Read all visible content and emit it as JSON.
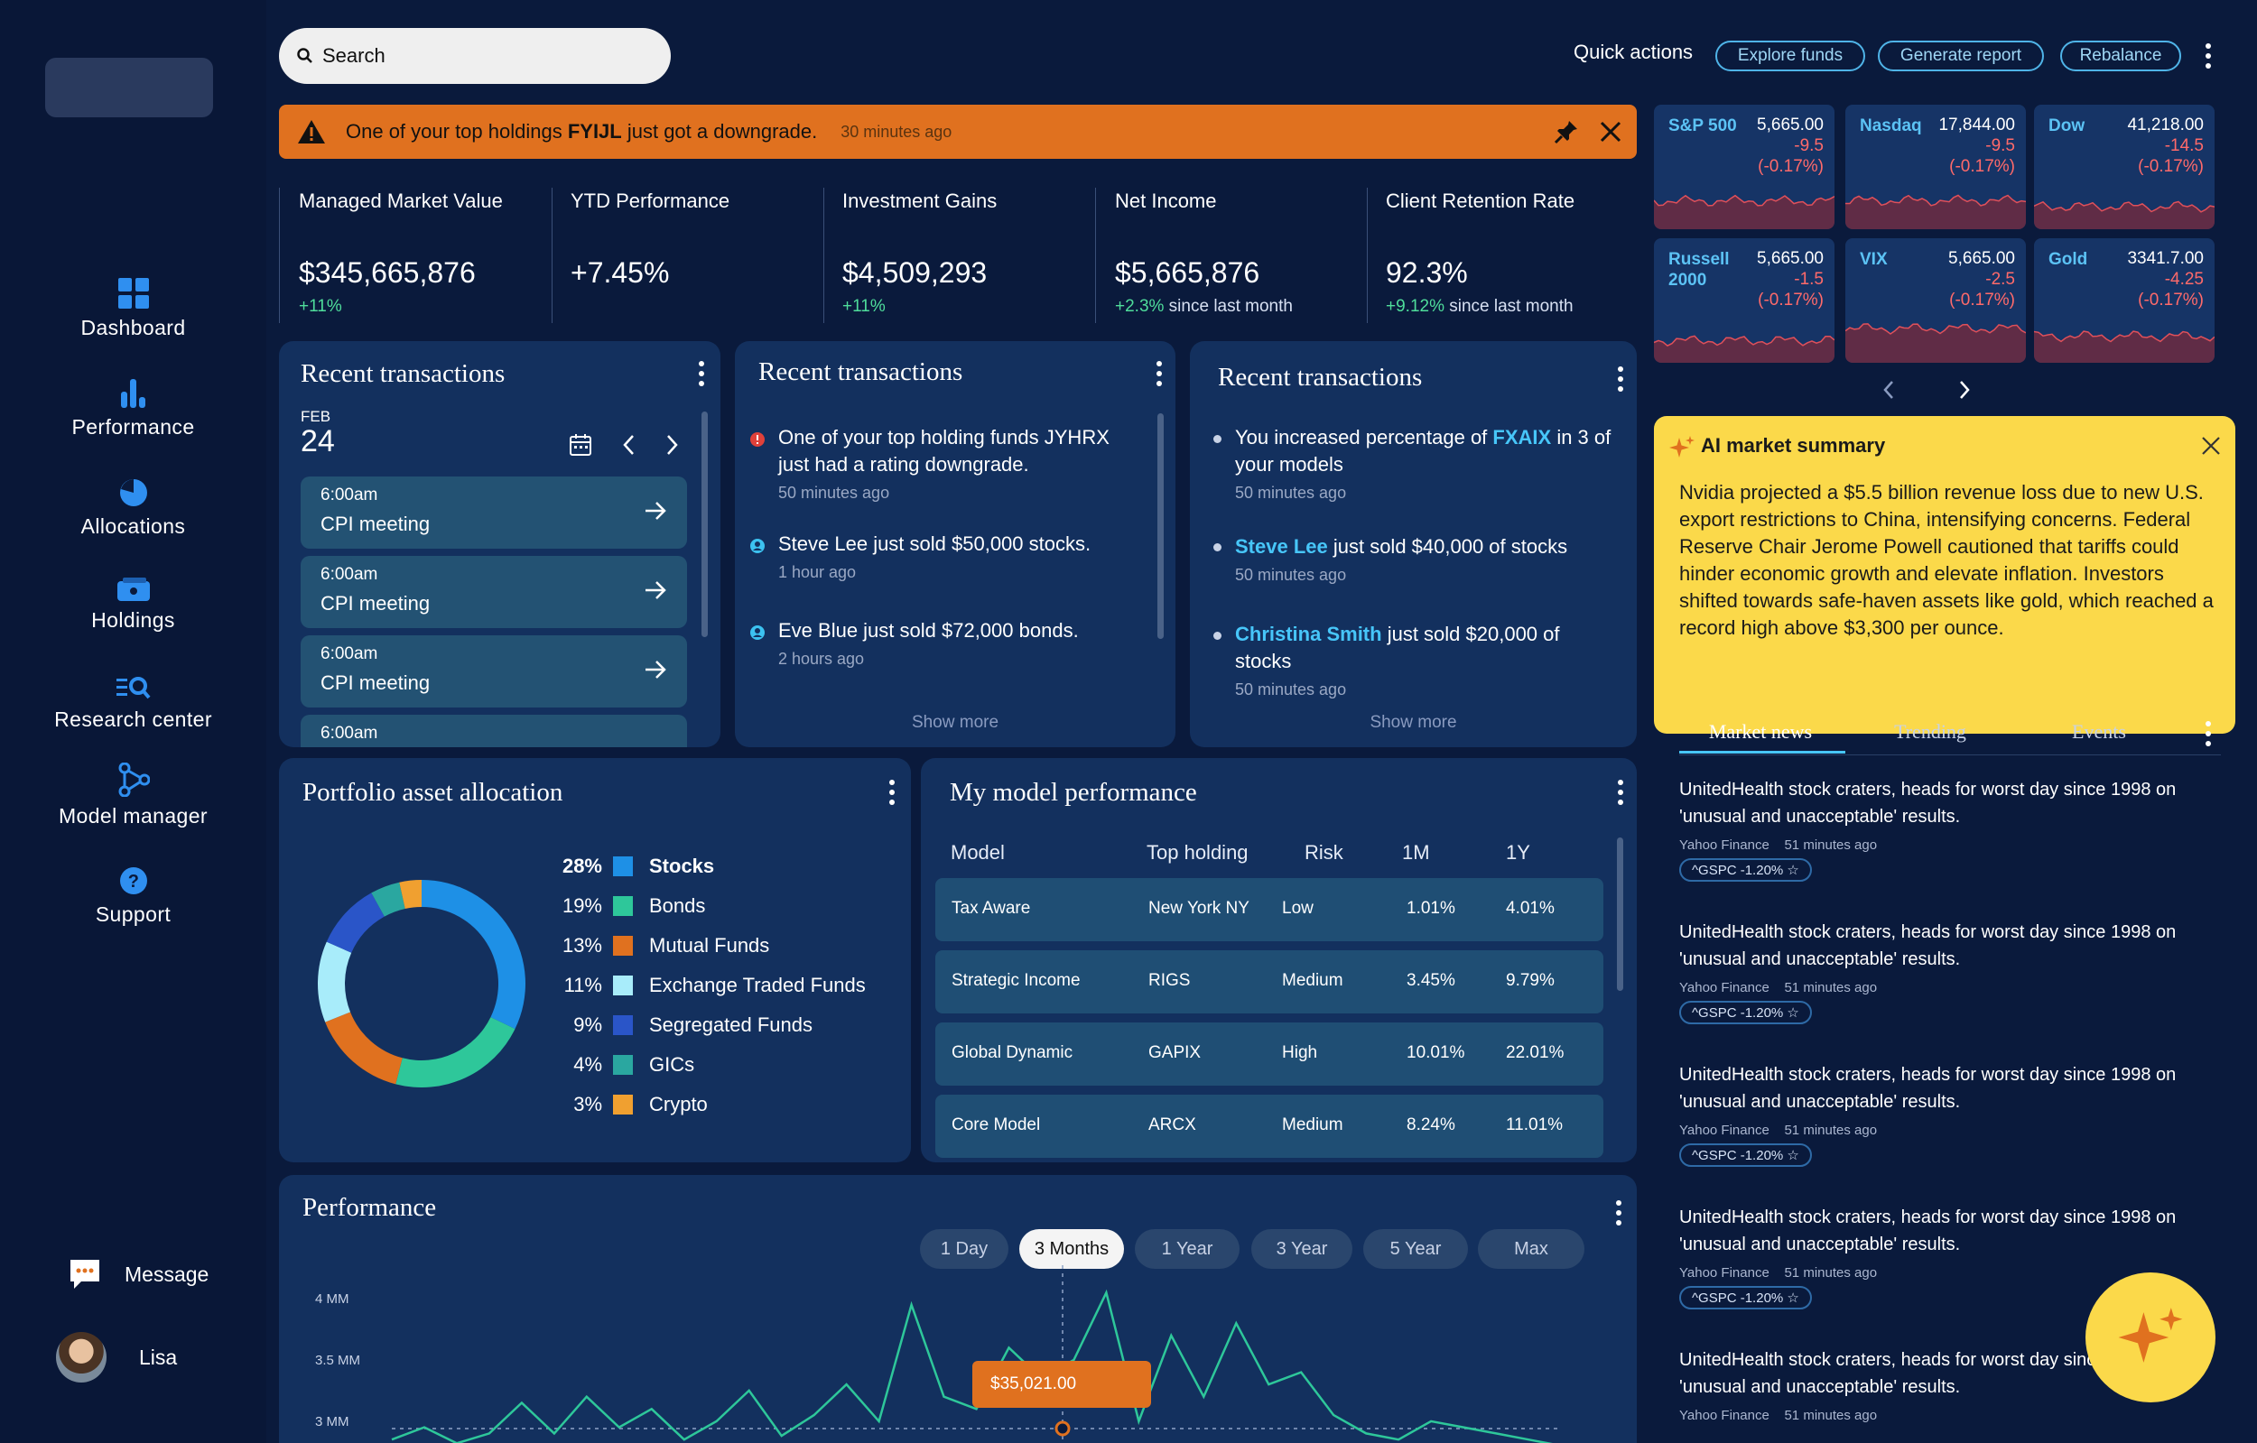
{
  "sidebar": {
    "items": [
      {
        "label": "Dashboard",
        "icon": "dashboard-icon"
      },
      {
        "label": "Performance",
        "icon": "bar-chart-icon"
      },
      {
        "label": "Allocations",
        "icon": "pie-chart-icon"
      },
      {
        "label": "Holdings",
        "icon": "wallet-icon"
      },
      {
        "label": "Research center",
        "icon": "research-icon"
      },
      {
        "label": "Model manager",
        "icon": "model-icon"
      },
      {
        "label": "Support",
        "icon": "help-icon"
      }
    ],
    "message_label": "Message",
    "user_name": "Lisa"
  },
  "search": {
    "placeholder": "Search"
  },
  "quick_actions": {
    "label": "Quick actions",
    "buttons": [
      "Explore funds",
      "Generate report",
      "Rebalance"
    ]
  },
  "alert": {
    "prefix": "One of your top holdings ",
    "ticker": "FYIJL",
    "suffix": " just got a downgrade.",
    "time": "30 minutes ago",
    "color": "#e0711f"
  },
  "kpis": [
    {
      "label": "Managed Market Value",
      "value": "$345,665,876",
      "change": "+11%",
      "note": ""
    },
    {
      "label": "YTD Performance",
      "value": "+7.45%",
      "change": "",
      "note": ""
    },
    {
      "label": "Investment Gains",
      "value": "$4,509,293",
      "change": "+11%",
      "note": ""
    },
    {
      "label": "Net Income",
      "value": "$5,665,876",
      "change": "+2.3%",
      "note": " since last month"
    },
    {
      "label": "Client Retention Rate",
      "value": "92.3%",
      "change": "+9.12%",
      "note": " since last month"
    }
  ],
  "tickers": [
    {
      "name": "S&P 500",
      "value": "5,665.00",
      "change": "-9.5",
      "pct": "(-0.17%)"
    },
    {
      "name": "Nasdaq",
      "value": "17,844.00",
      "change": "-9.5",
      "pct": "(-0.17%)"
    },
    {
      "name": "Dow",
      "value": "41,218.00",
      "change": "-14.5",
      "pct": "(-0.17%)"
    },
    {
      "name": "Russell 2000",
      "value": "5,665.00",
      "change": "-1.5",
      "pct": "(-0.17%)"
    },
    {
      "name": "VIX",
      "value": "5,665.00",
      "change": "-2.5",
      "pct": "(-0.17%)"
    },
    {
      "name": "Gold",
      "value": "3341.7.00",
      "change": "-4.25",
      "pct": "(-0.17%)"
    }
  ],
  "calendar": {
    "title": "Recent transactions",
    "month": "FEB",
    "day": "24",
    "events": [
      {
        "time": "6:00am",
        "name": "CPI meeting"
      },
      {
        "time": "6:00am",
        "name": "CPI meeting"
      },
      {
        "time": "6:00am",
        "name": "CPI meeting"
      },
      {
        "time": "6:00am",
        "name": ""
      }
    ]
  },
  "feed1": {
    "title": "Recent transactions",
    "items": [
      {
        "text": "One of your top holding funds JYHRX just had a rating downgrade.",
        "time": "50 minutes ago"
      },
      {
        "text": "Steve Lee just sold $50,000 stocks.",
        "time": "1 hour ago"
      },
      {
        "text": "Eve Blue just sold $72,000 bonds.",
        "time": "2 hours ago"
      }
    ],
    "show_more": "Show more"
  },
  "feed2": {
    "title": "Recent transactions",
    "items": [
      {
        "pre": "You increased percentage of ",
        "hl": "FXAIX",
        "post": " in 3 of your models",
        "time": "50 minutes ago"
      },
      {
        "pre": "",
        "hl": "Steve Lee",
        "post": " just sold $40,000 of stocks",
        "time": "50 minutes ago"
      },
      {
        "pre": "",
        "hl": "Christina Smith",
        "post": " just sold $20,000 of stocks",
        "time": "50 minutes ago"
      }
    ],
    "show_more": "Show more"
  },
  "allocation": {
    "title": "Portfolio asset allocation",
    "chart_data": {
      "type": "pie",
      "categories": [
        "Stocks",
        "Bonds",
        "Mutual Funds",
        "Exchange Traded Funds",
        "Segregated Funds",
        "GICs",
        "Crypto"
      ],
      "values": [
        28,
        19,
        13,
        11,
        9,
        4,
        3
      ],
      "labels": [
        "28%",
        "19%",
        "13%",
        "11%",
        "9%",
        "4%",
        "3%"
      ],
      "colors": [
        "#1e90e6",
        "#2ec79a",
        "#e0711f",
        "#a8ecfa",
        "#2a55c8",
        "#2aa7a0",
        "#f0a030"
      ]
    }
  },
  "models": {
    "title": "My model performance",
    "columns": [
      "Model",
      "Top holding",
      "Risk",
      "1M",
      "1Y"
    ],
    "rows": [
      [
        "Tax Aware",
        "New York NY",
        "Low",
        "1.01%",
        "4.01%"
      ],
      [
        "Strategic Income",
        "RIGS",
        "Medium",
        "3.45%",
        "9.79%"
      ],
      [
        "Global Dynamic",
        "GAPIX",
        "High",
        "10.01%",
        "22.01%"
      ],
      [
        "Core Model",
        "ARCX",
        "Medium",
        "8.24%",
        "11.01%"
      ]
    ]
  },
  "performance": {
    "title": "Performance",
    "ranges": [
      "1 Day",
      "3 Months",
      "1 Year",
      "3 Year",
      "5 Year",
      "Max"
    ],
    "active_range": "3 Months",
    "tooltip": "$35,021.00",
    "chart_data": {
      "type": "line",
      "y_ticks": [
        "4 MM",
        "3.5 MM",
        "3 MM"
      ],
      "ylim": [
        2.8,
        4.2
      ],
      "series": [
        {
          "values": [
            2.85,
            2.95,
            2.82,
            2.9,
            3.15,
            2.9,
            3.2,
            2.95,
            3.1,
            2.85,
            3.0,
            3.25,
            2.88,
            3.05,
            3.3,
            3.0,
            3.95,
            3.2,
            3.1,
            3.6,
            3.35,
            3.5,
            4.05,
            3.0,
            3.7,
            3.2,
            3.8,
            3.3,
            3.4,
            3.05,
            2.9,
            2.85,
            3.0,
            2.95,
            2.9,
            2.85,
            2.8
          ]
        }
      ]
    }
  },
  "ai_summary": {
    "title": "AI market summary",
    "body": "Nvidia projected a $5.5 billion revenue loss due to new U.S. export restrictions to China, intensifying concerns. Federal Reserve Chair Jerome Powell cautioned that tariffs could hinder economic growth and elevate inflation. Investors shifted towards safe-haven assets like gold, which reached a record high above $3,300 per ounce.",
    "bg_color": "#fbd94a"
  },
  "news": {
    "tabs": [
      "Market news",
      "Trending",
      "Events"
    ],
    "items": [
      {
        "title": "UnitedHealth stock craters, heads for worst day since 1998 on 'unusual and unacceptable' results.",
        "source": "Yahoo Finance",
        "time": "51 minutes ago",
        "tag": "^GSPC  -1.20%"
      },
      {
        "title": "UnitedHealth stock craters, heads for worst day since 1998 on 'unusual and unacceptable' results.",
        "source": "Yahoo Finance",
        "time": "51 minutes ago",
        "tag": "^GSPC  -1.20%"
      },
      {
        "title": "UnitedHealth stock craters, heads for worst day since 1998 on 'unusual and unacceptable' results.",
        "source": "Yahoo Finance",
        "time": "51 minutes ago",
        "tag": "^GSPC  -1.20%"
      },
      {
        "title": "UnitedHealth stock craters, heads for worst day since 1998 on 'unusual and unacceptable' results.",
        "source": "Yahoo Finance",
        "time": "51 minutes ago",
        "tag": "^GSPC  -1.20%"
      },
      {
        "title": "UnitedHealth stock craters, heads for worst day since 1998 on 'unusual and unacceptable' results.",
        "source": "Yahoo Finance",
        "time": "51 minutes ago",
        "tag": ""
      }
    ]
  }
}
